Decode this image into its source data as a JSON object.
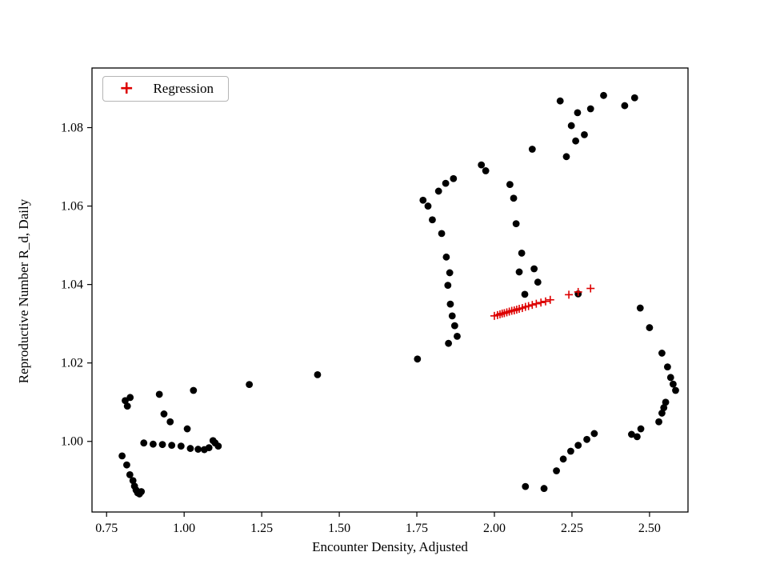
{
  "figure": {
    "background": "#ffffff"
  },
  "chart_data": {
    "type": "scatter",
    "title": "",
    "xlabel": "Encounter Density, Adjusted",
    "ylabel": "Reproductive Number R_d, Daily",
    "xlim": [
      0.703,
      2.624
    ],
    "ylim": [
      0.982,
      1.0952
    ],
    "grid": false,
    "frame_color": "#000000",
    "xticks": {
      "values": [
        0.75,
        1.0,
        1.25,
        1.5,
        1.75,
        2.0,
        2.25,
        2.5
      ],
      "labels": [
        "0.75",
        "1.00",
        "1.25",
        "1.50",
        "1.75",
        "2.00",
        "2.25",
        "2.50"
      ]
    },
    "yticks": {
      "values": [
        1.0,
        1.02,
        1.04,
        1.06,
        1.08
      ],
      "labels": [
        "1.00",
        "1.02",
        "1.04",
        "1.06",
        "1.08"
      ]
    },
    "legend": {
      "position": "upper-left",
      "entries": [
        {
          "label": "Regression",
          "marker": "plus",
          "marker_glyph": "+",
          "color": "#dd0000"
        }
      ]
    },
    "series": [
      {
        "name": "observations",
        "marker": "circle",
        "color": "#000000",
        "points": [
          [
            0.8,
            0.9963
          ],
          [
            0.815,
            0.994
          ],
          [
            0.825,
            0.9915
          ],
          [
            0.835,
            0.99
          ],
          [
            0.84,
            0.9886
          ],
          [
            0.845,
            0.9876
          ],
          [
            0.85,
            0.9869
          ],
          [
            0.856,
            0.9866
          ],
          [
            0.862,
            0.9872
          ],
          [
            0.81,
            1.0104
          ],
          [
            0.817,
            1.009
          ],
          [
            0.826,
            1.0112
          ],
          [
            0.87,
            0.9996
          ],
          [
            0.9,
            0.9993
          ],
          [
            0.93,
            0.9992
          ],
          [
            0.96,
            0.999
          ],
          [
            0.99,
            0.9988
          ],
          [
            1.02,
            0.9982
          ],
          [
            1.045,
            0.998
          ],
          [
            1.065,
            0.9979
          ],
          [
            1.08,
            0.9984
          ],
          [
            1.093,
            1.0002
          ],
          [
            1.1,
            0.9996
          ],
          [
            1.11,
            0.9988
          ],
          [
            0.92,
            1.012
          ],
          [
            0.935,
            1.007
          ],
          [
            0.955,
            1.005
          ],
          [
            1.01,
            1.0032
          ],
          [
            1.03,
            1.013
          ],
          [
            1.21,
            1.0145
          ],
          [
            1.43,
            1.017
          ],
          [
            1.752,
            1.021
          ],
          [
            1.77,
            1.0615
          ],
          [
            1.786,
            1.06
          ],
          [
            1.8,
            1.0565
          ],
          [
            1.82,
            1.0638
          ],
          [
            1.843,
            1.0658
          ],
          [
            1.868,
            1.067
          ],
          [
            1.83,
            1.053
          ],
          [
            1.845,
            1.047
          ],
          [
            1.856,
            1.043
          ],
          [
            1.85,
            1.0398
          ],
          [
            1.858,
            1.035
          ],
          [
            1.864,
            1.032
          ],
          [
            1.872,
            1.0295
          ],
          [
            1.88,
            1.0268
          ],
          [
            1.852,
            1.025
          ],
          [
            1.958,
            1.0705
          ],
          [
            1.972,
            1.069
          ],
          [
            2.05,
            1.0655
          ],
          [
            2.062,
            1.062
          ],
          [
            2.07,
            1.0555
          ],
          [
            2.088,
            1.048
          ],
          [
            2.08,
            1.0432
          ],
          [
            2.098,
            1.0375
          ],
          [
            2.128,
            1.044
          ],
          [
            2.14,
            1.0406
          ],
          [
            2.122,
            1.0745
          ],
          [
            2.212,
            1.0868
          ],
          [
            2.248,
            1.0805
          ],
          [
            2.268,
            1.0838
          ],
          [
            2.29,
            1.0782
          ],
          [
            2.262,
            1.0766
          ],
          [
            2.232,
            1.0726
          ],
          [
            2.31,
            1.0848
          ],
          [
            2.352,
            1.0882
          ],
          [
            2.42,
            1.0856
          ],
          [
            2.452,
            1.0876
          ],
          [
            2.47,
            1.034
          ],
          [
            2.5,
            1.029
          ],
          [
            2.54,
            1.0225
          ],
          [
            2.558,
            1.019
          ],
          [
            2.568,
            1.0163
          ],
          [
            2.576,
            1.0146
          ],
          [
            2.584,
            1.013
          ],
          [
            2.552,
            1.01
          ],
          [
            2.546,
            1.0086
          ],
          [
            2.54,
            1.0072
          ],
          [
            2.53,
            1.005
          ],
          [
            2.472,
            1.0032
          ],
          [
            2.46,
            1.0012
          ],
          [
            2.442,
            1.0018
          ],
          [
            2.1,
            0.9885
          ],
          [
            2.16,
            0.988
          ],
          [
            2.2,
            0.9925
          ],
          [
            2.222,
            0.9955
          ],
          [
            2.246,
            0.9975
          ],
          [
            2.27,
            0.999
          ],
          [
            2.298,
            1.0005
          ],
          [
            2.322,
            1.002
          ],
          [
            2.27,
            1.0376
          ]
        ]
      },
      {
        "name": "Regression",
        "marker": "plus",
        "color": "#dd0000",
        "points": [
          [
            2.0,
            1.032
          ],
          [
            2.01,
            1.0322
          ],
          [
            2.018,
            1.0324
          ],
          [
            2.025,
            1.0326
          ],
          [
            2.032,
            1.0327
          ],
          [
            2.04,
            1.0329
          ],
          [
            2.048,
            1.0331
          ],
          [
            2.056,
            1.0333
          ],
          [
            2.064,
            1.0334
          ],
          [
            2.072,
            1.0336
          ],
          [
            2.08,
            1.0338
          ],
          [
            2.09,
            1.034
          ],
          [
            2.1,
            1.0343
          ],
          [
            2.11,
            1.0345
          ],
          [
            2.122,
            1.0348
          ],
          [
            2.135,
            1.0351
          ],
          [
            2.15,
            1.0354
          ],
          [
            2.165,
            1.0357
          ],
          [
            2.18,
            1.0361
          ],
          [
            2.24,
            1.0374
          ],
          [
            2.27,
            1.0381
          ],
          [
            2.31,
            1.039
          ]
        ]
      }
    ]
  }
}
